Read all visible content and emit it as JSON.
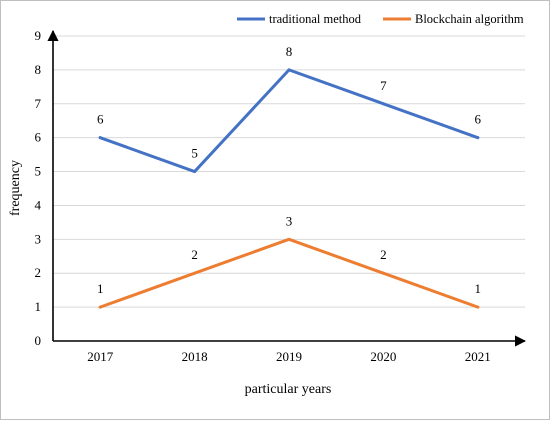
{
  "chart_data": {
    "type": "line",
    "categories": [
      "2017",
      "2018",
      "2019",
      "2020",
      "2021"
    ],
    "series": [
      {
        "name": "traditional method",
        "values": [
          6,
          5,
          8,
          7,
          6
        ],
        "color": "#4472C4"
      },
      {
        "name": "Blockchain algorithm",
        "values": [
          1,
          2,
          3,
          2,
          1
        ],
        "color": "#ED7D31"
      }
    ],
    "title": "",
    "xlabel": "particular years",
    "ylabel": "frequency",
    "ylim": [
      0,
      9
    ],
    "yticks": [
      "0",
      "1",
      "2",
      "3",
      "4",
      "5",
      "6",
      "7",
      "8",
      "9"
    ],
    "grid": true,
    "legend_position": "top-right",
    "data_labels": true
  }
}
